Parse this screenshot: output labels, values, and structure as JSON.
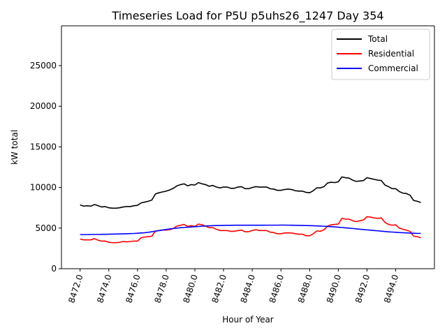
{
  "chart_data": {
    "type": "line",
    "title": "Timeseries Load for P5U p5uhs26_1247  Day 354",
    "xlabel": "Hour of Year",
    "ylabel": "kW total",
    "xlim": [
      8470.7,
      8496.7
    ],
    "ylim": [
      0,
      29900
    ],
    "xticks": [
      8472,
      8474,
      8476,
      8478,
      8480,
      8482,
      8484,
      8486,
      8488,
      8490,
      8492,
      8494
    ],
    "xtick_labels": [
      "8472.0",
      "8474.0",
      "8476.0",
      "8478.0",
      "8480.0",
      "8482.0",
      "8484.0",
      "8486.0",
      "8488.0",
      "8490.0",
      "8492.0",
      "8494.0"
    ],
    "yticks": [
      0,
      5000,
      10000,
      15000,
      20000,
      25000
    ],
    "ytick_labels": [
      "0",
      "5000",
      "10000",
      "15000",
      "20000",
      "25000"
    ],
    "legend_position": "top-right",
    "series": [
      {
        "name": "Total",
        "color": "#000000",
        "x": [
          8472.0,
          8472.25,
          8472.5,
          8472.75,
          8473.0,
          8473.25,
          8473.5,
          8473.75,
          8474.0,
          8474.25,
          8474.5,
          8474.75,
          8475.0,
          8475.25,
          8475.5,
          8475.75,
          8476.0,
          8476.25,
          8476.5,
          8476.75,
          8477.0,
          8477.25,
          8477.5,
          8477.75,
          8478.0,
          8478.25,
          8478.5,
          8478.75,
          8479.0,
          8479.25,
          8479.5,
          8479.75,
          8480.0,
          8480.25,
          8480.5,
          8480.75,
          8481.0,
          8481.25,
          8481.5,
          8481.75,
          8482.0,
          8482.25,
          8482.5,
          8482.75,
          8483.0,
          8483.25,
          8483.5,
          8483.75,
          8484.0,
          8484.25,
          8484.5,
          8484.75,
          8485.0,
          8485.25,
          8485.5,
          8485.75,
          8486.0,
          8486.25,
          8486.5,
          8486.75,
          8487.0,
          8487.25,
          8487.5,
          8487.75,
          8488.0,
          8488.25,
          8488.5,
          8488.75,
          8489.0,
          8489.25,
          8489.5,
          8489.75,
          8490.0,
          8490.25,
          8490.5,
          8490.75,
          8491.0,
          8491.25,
          8491.5,
          8491.75,
          8492.0,
          8492.25,
          8492.5,
          8492.75,
          8493.0,
          8493.25,
          8493.5,
          8493.75,
          8494.0,
          8494.25,
          8494.5,
          8494.75,
          8495.0,
          8495.25,
          8495.5,
          8495.75
        ],
        "values": [
          7850,
          7700,
          7750,
          7700,
          7900,
          7750,
          7600,
          7650,
          7500,
          7450,
          7450,
          7500,
          7600,
          7650,
          7650,
          7750,
          7800,
          8100,
          8200,
          8300,
          8450,
          9200,
          9350,
          9450,
          9550,
          9700,
          9900,
          10200,
          10350,
          10450,
          10200,
          10350,
          10300,
          10600,
          10450,
          10350,
          10150,
          10250,
          10050,
          9950,
          10050,
          10050,
          9900,
          9900,
          10050,
          10100,
          9850,
          9850,
          10000,
          10100,
          10050,
          10050,
          10050,
          9850,
          9800,
          9650,
          9650,
          9750,
          9800,
          9750,
          9600,
          9550,
          9550,
          9400,
          9350,
          9600,
          9950,
          9950,
          10100,
          10550,
          10650,
          10600,
          10700,
          11300,
          11200,
          11150,
          10900,
          10750,
          10800,
          10850,
          11200,
          11100,
          11000,
          10900,
          10850,
          10300,
          10100,
          9850,
          9850,
          9500,
          9300,
          9250,
          9050,
          8400,
          8300,
          8150
        ]
      },
      {
        "name": "Residential",
        "color": "#ff0000",
        "x": [
          8472.0,
          8472.25,
          8472.5,
          8472.75,
          8473.0,
          8473.25,
          8473.5,
          8473.75,
          8474.0,
          8474.25,
          8474.5,
          8474.75,
          8475.0,
          8475.25,
          8475.5,
          8475.75,
          8476.0,
          8476.25,
          8476.5,
          8476.75,
          8477.0,
          8477.25,
          8477.5,
          8477.75,
          8478.0,
          8478.25,
          8478.5,
          8478.75,
          8479.0,
          8479.25,
          8479.5,
          8479.75,
          8480.0,
          8480.25,
          8480.5,
          8480.75,
          8481.0,
          8481.25,
          8481.5,
          8481.75,
          8482.0,
          8482.25,
          8482.5,
          8482.75,
          8483.0,
          8483.25,
          8483.5,
          8483.75,
          8484.0,
          8484.25,
          8484.5,
          8484.75,
          8485.0,
          8485.25,
          8485.5,
          8485.75,
          8486.0,
          8486.25,
          8486.5,
          8486.75,
          8487.0,
          8487.25,
          8487.5,
          8487.75,
          8488.0,
          8488.25,
          8488.5,
          8488.75,
          8489.0,
          8489.25,
          8489.5,
          8489.75,
          8490.0,
          8490.25,
          8490.5,
          8490.75,
          8491.0,
          8491.25,
          8491.5,
          8491.75,
          8492.0,
          8492.25,
          8492.5,
          8492.75,
          8493.0,
          8493.25,
          8493.5,
          8493.75,
          8494.0,
          8494.25,
          8494.5,
          8494.75,
          8495.0,
          8495.25,
          8495.5,
          8495.75
        ],
        "values": [
          3650,
          3550,
          3550,
          3550,
          3700,
          3500,
          3400,
          3400,
          3250,
          3200,
          3200,
          3250,
          3350,
          3300,
          3350,
          3400,
          3400,
          3800,
          3900,
          3950,
          4000,
          4650,
          4700,
          4750,
          4750,
          4800,
          4950,
          5250,
          5350,
          5450,
          5200,
          5300,
          5200,
          5500,
          5400,
          5250,
          5050,
          5050,
          4850,
          4700,
          4700,
          4700,
          4600,
          4600,
          4700,
          4750,
          4550,
          4550,
          4700,
          4800,
          4700,
          4700,
          4700,
          4500,
          4450,
          4300,
          4300,
          4400,
          4400,
          4400,
          4300,
          4250,
          4250,
          4050,
          4050,
          4300,
          4650,
          4600,
          4800,
          5250,
          5400,
          5450,
          5500,
          6200,
          6100,
          6100,
          5900,
          5800,
          5900,
          6000,
          6400,
          6350,
          6250,
          6200,
          6250,
          5700,
          5450,
          5350,
          5400,
          5000,
          4850,
          4750,
          4600,
          4000,
          3950,
          3800
        ]
      },
      {
        "name": "Commercial",
        "color": "#0000ff",
        "x": [
          8472.0,
          8472.25,
          8472.5,
          8472.75,
          8473.0,
          8473.25,
          8473.5,
          8473.75,
          8474.0,
          8474.25,
          8474.5,
          8474.75,
          8475.0,
          8475.25,
          8475.5,
          8475.75,
          8476.0,
          8476.25,
          8476.5,
          8476.75,
          8477.0,
          8477.25,
          8477.5,
          8477.75,
          8478.0,
          8478.25,
          8478.5,
          8478.75,
          8479.0,
          8479.25,
          8479.5,
          8479.75,
          8480.0,
          8480.25,
          8480.5,
          8480.75,
          8481.0,
          8481.25,
          8481.5,
          8481.75,
          8482.0,
          8482.25,
          8482.5,
          8482.75,
          8483.0,
          8483.25,
          8483.5,
          8483.75,
          8484.0,
          8484.25,
          8484.5,
          8484.75,
          8485.0,
          8485.25,
          8485.5,
          8485.75,
          8486.0,
          8486.25,
          8486.5,
          8486.75,
          8487.0,
          8487.25,
          8487.5,
          8487.75,
          8488.0,
          8488.25,
          8488.5,
          8488.75,
          8489.0,
          8489.25,
          8489.5,
          8489.75,
          8490.0,
          8490.25,
          8490.5,
          8490.75,
          8491.0,
          8491.25,
          8491.5,
          8491.75,
          8492.0,
          8492.25,
          8492.5,
          8492.75,
          8493.0,
          8493.25,
          8493.5,
          8493.75,
          8494.0,
          8494.25,
          8494.5,
          8494.75,
          8495.0,
          8495.25,
          8495.5,
          8495.75
        ],
        "values": [
          4200,
          4200,
          4200,
          4210,
          4220,
          4220,
          4230,
          4240,
          4250,
          4260,
          4270,
          4280,
          4290,
          4300,
          4320,
          4340,
          4370,
          4400,
          4430,
          4480,
          4550,
          4620,
          4690,
          4760,
          4830,
          4890,
          4950,
          5000,
          5040,
          5080,
          5110,
          5140,
          5170,
          5200,
          5230,
          5260,
          5280,
          5300,
          5310,
          5320,
          5330,
          5340,
          5340,
          5350,
          5350,
          5350,
          5350,
          5350,
          5350,
          5350,
          5350,
          5350,
          5360,
          5360,
          5360,
          5360,
          5370,
          5370,
          5360,
          5350,
          5340,
          5330,
          5320,
          5310,
          5300,
          5290,
          5270,
          5250,
          5230,
          5200,
          5170,
          5140,
          5110,
          5070,
          5030,
          4990,
          4950,
          4900,
          4860,
          4820,
          4780,
          4740,
          4700,
          4660,
          4620,
          4580,
          4540,
          4510,
          4480,
          4450,
          4430,
          4410,
          4390,
          4370,
          4350,
          4340
        ]
      }
    ]
  }
}
